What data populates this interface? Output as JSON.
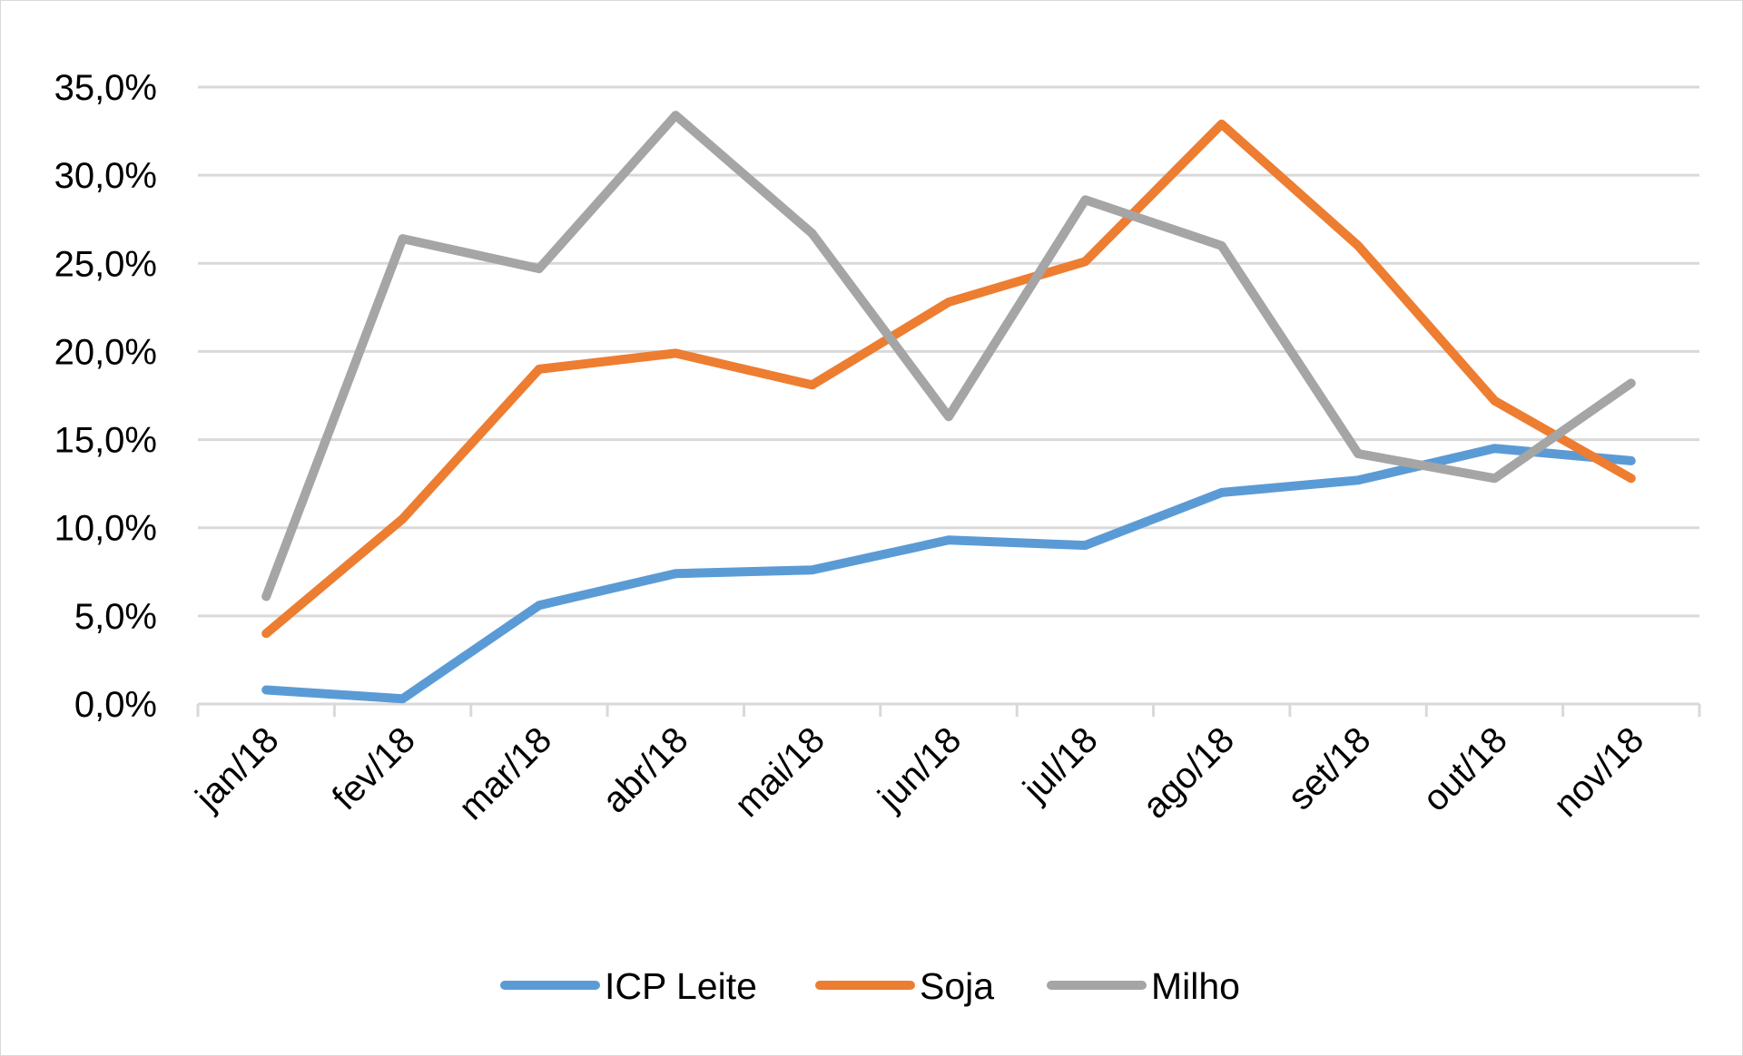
{
  "chart_data": {
    "type": "line",
    "title": "",
    "xlabel": "",
    "ylabel": "",
    "categories": [
      "jan/18",
      "fev/18",
      "mar/18",
      "abr/18",
      "mai/18",
      "jun/18",
      "jul/18",
      "ago/18",
      "set/18",
      "out/18",
      "nov/18"
    ],
    "y_ticks": [
      "0,0%",
      "5,0%",
      "10,0%",
      "15,0%",
      "20,0%",
      "25,0%",
      "30,0%",
      "35,0%"
    ],
    "ylim": [
      0,
      35
    ],
    "grid": true,
    "legend_position": "bottom",
    "series": [
      {
        "name": "ICP Leite",
        "color": "#5b9bd5",
        "values": [
          0.8,
          0.3,
          5.6,
          7.4,
          7.6,
          9.3,
          9.0,
          12.0,
          12.7,
          14.5,
          13.8
        ]
      },
      {
        "name": "Soja",
        "color": "#ed7d31",
        "values": [
          4.0,
          10.5,
          19.0,
          19.9,
          18.1,
          22.8,
          25.1,
          32.9,
          26.0,
          17.2,
          12.8
        ]
      },
      {
        "name": "Milho",
        "color": "#a5a5a5",
        "values": [
          6.1,
          26.4,
          24.7,
          33.4,
          26.7,
          16.3,
          28.6,
          26.0,
          14.2,
          12.8,
          18.2
        ]
      }
    ]
  }
}
